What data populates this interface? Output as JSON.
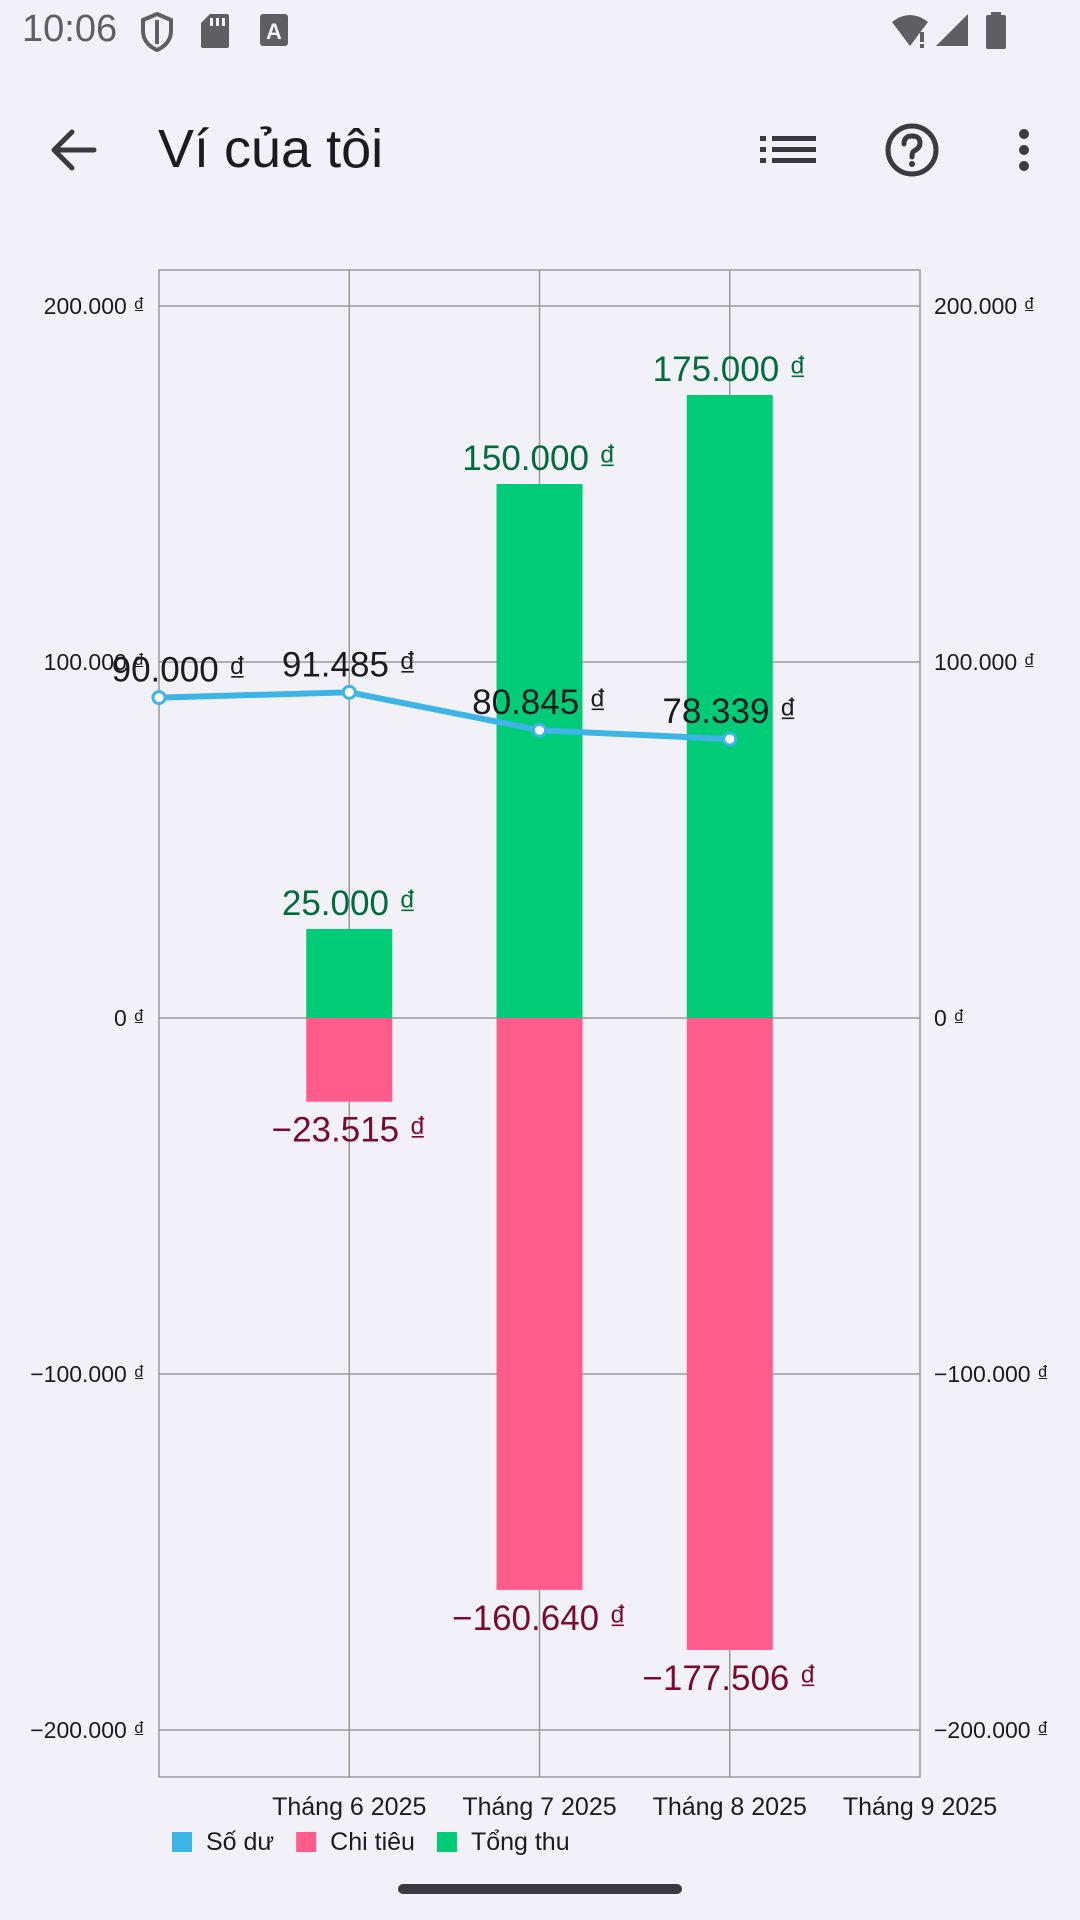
{
  "status_bar": {
    "time": "10:06",
    "icons": [
      "shield-icon",
      "sd-card-icon",
      "font-a-icon",
      "wifi-icon",
      "signal-icon",
      "battery-icon"
    ]
  },
  "app_bar": {
    "title": "Ví của tôi",
    "icons": [
      "back-arrow-icon",
      "list-icon",
      "help-icon",
      "more-vert-icon"
    ]
  },
  "colors": {
    "balance": "#3cb4e5",
    "expense": "#ff5b8b",
    "income": "#00cc77",
    "income_label": "#006b3c",
    "expense_label": "#7a0a32",
    "balance_label": "#1c1b1f",
    "grid": "#9a9a9a",
    "background": "#f3f1f8"
  },
  "chart_data": {
    "type": "bar",
    "categories": [
      "Tháng 6 2025",
      "Tháng 7 2025",
      "Tháng 8 2025",
      "Tháng 9 2025"
    ],
    "first_point_label": "",
    "series": [
      {
        "name": "Số dư",
        "type": "line",
        "points": [
          {
            "x": "start",
            "value": 90000,
            "label": "90.000 ₫"
          },
          {
            "x": "Tháng 6 2025",
            "value": 91485,
            "label": "91.485 ₫"
          },
          {
            "x": "Tháng 7 2025",
            "value": 80845,
            "label": "80.845 ₫"
          },
          {
            "x": "Tháng 8 2025",
            "value": 78339,
            "label": "78.339 ₫"
          }
        ]
      },
      {
        "name": "Chi tiêu",
        "type": "bar",
        "values": [
          -23515,
          -160640,
          -177506,
          null
        ],
        "labels": [
          "−23.515 ₫",
          "−160.640 ₫",
          "−177.506 ₫",
          ""
        ]
      },
      {
        "name": "Tổng thu",
        "type": "bar",
        "values": [
          25000,
          150000,
          175000,
          null
        ],
        "labels": [
          "25.000 ₫",
          "150.000 ₫",
          "175.000 ₫",
          ""
        ]
      }
    ],
    "y_ticks": [
      {
        "value": 200000,
        "label": "200.000 ₫"
      },
      {
        "value": 100000,
        "label": "100.000 ₫"
      },
      {
        "value": 0,
        "label": "0 ₫"
      },
      {
        "value": -100000,
        "label": "−100.000 ₫"
      },
      {
        "value": -200000,
        "label": "−200.000 ₫"
      }
    ],
    "ylim": [
      -212000,
      212000
    ],
    "grid": true,
    "legend_position": "bottom-left",
    "title": "",
    "xlabel": "",
    "ylabel": ""
  }
}
